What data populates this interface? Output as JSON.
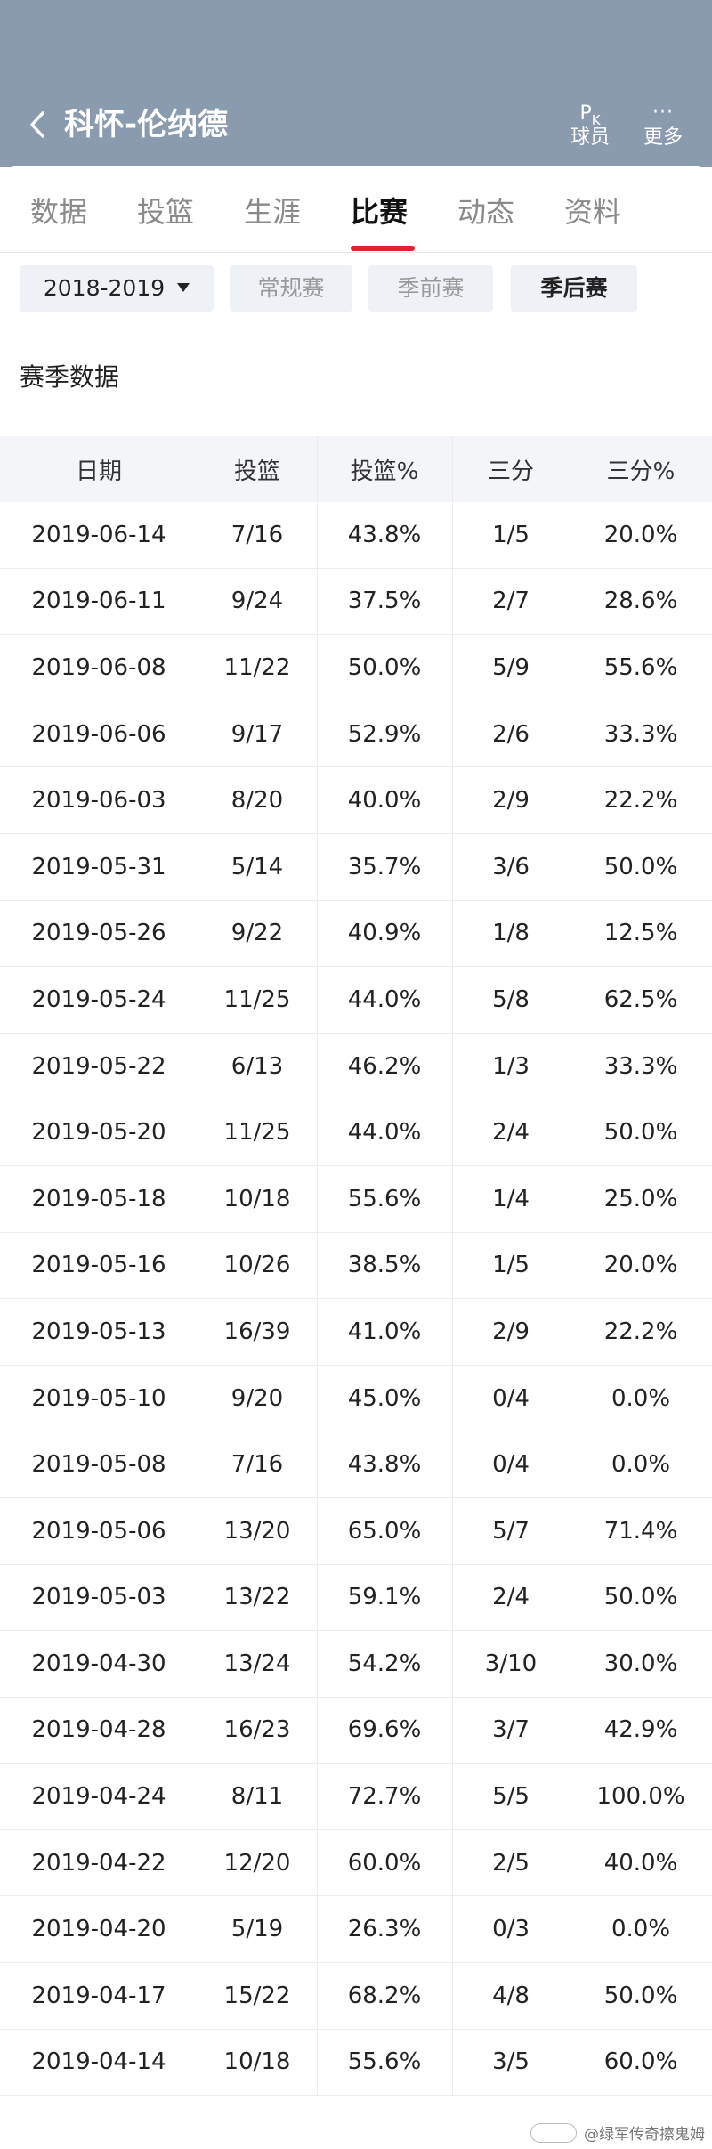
{
  "header": {
    "title": "科怀-伦纳德",
    "pk_glyph_main": "P",
    "pk_glyph_sub": "K",
    "pk_label": "球员",
    "more_glyph": "···",
    "more_label": "更多"
  },
  "tabs": [
    "数据",
    "投篮",
    "生涯",
    "比赛",
    "动态",
    "资料"
  ],
  "active_tab": "比赛",
  "filters": {
    "season": "2018-2019",
    "regular": "常规赛",
    "preseason": "季前赛",
    "playoffs": "季后赛"
  },
  "section_title": "赛季数据",
  "table": {
    "columns": [
      "日期",
      "投篮",
      "投篮%",
      "三分",
      "三分%"
    ],
    "rows": [
      [
        "2019-06-14",
        "7/16",
        "43.8%",
        "1/5",
        "20.0%"
      ],
      [
        "2019-06-11",
        "9/24",
        "37.5%",
        "2/7",
        "28.6%"
      ],
      [
        "2019-06-08",
        "11/22",
        "50.0%",
        "5/9",
        "55.6%"
      ],
      [
        "2019-06-06",
        "9/17",
        "52.9%",
        "2/6",
        "33.3%"
      ],
      [
        "2019-06-03",
        "8/20",
        "40.0%",
        "2/9",
        "22.2%"
      ],
      [
        "2019-05-31",
        "5/14",
        "35.7%",
        "3/6",
        "50.0%"
      ],
      [
        "2019-05-26",
        "9/22",
        "40.9%",
        "1/8",
        "12.5%"
      ],
      [
        "2019-05-24",
        "11/25",
        "44.0%",
        "5/8",
        "62.5%"
      ],
      [
        "2019-05-22",
        "6/13",
        "46.2%",
        "1/3",
        "33.3%"
      ],
      [
        "2019-05-20",
        "11/25",
        "44.0%",
        "2/4",
        "50.0%"
      ],
      [
        "2019-05-18",
        "10/18",
        "55.6%",
        "1/4",
        "25.0%"
      ],
      [
        "2019-05-16",
        "10/26",
        "38.5%",
        "1/5",
        "20.0%"
      ],
      [
        "2019-05-13",
        "16/39",
        "41.0%",
        "2/9",
        "22.2%"
      ],
      [
        "2019-05-10",
        "9/20",
        "45.0%",
        "0/4",
        "0.0%"
      ],
      [
        "2019-05-08",
        "7/16",
        "43.8%",
        "0/4",
        "0.0%"
      ],
      [
        "2019-05-06",
        "13/20",
        "65.0%",
        "5/7",
        "71.4%"
      ],
      [
        "2019-05-03",
        "13/22",
        "59.1%",
        "2/4",
        "50.0%"
      ],
      [
        "2019-04-30",
        "13/24",
        "54.2%",
        "3/10",
        "30.0%"
      ],
      [
        "2019-04-28",
        "16/23",
        "69.6%",
        "3/7",
        "42.9%"
      ],
      [
        "2019-04-24",
        "8/11",
        "72.7%",
        "5/5",
        "100.0%"
      ],
      [
        "2019-04-22",
        "12/20",
        "60.0%",
        "2/5",
        "40.0%"
      ],
      [
        "2019-04-20",
        "5/19",
        "26.3%",
        "0/3",
        "0.0%"
      ],
      [
        "2019-04-17",
        "15/22",
        "68.2%",
        "4/8",
        "50.0%"
      ],
      [
        "2019-04-14",
        "10/18",
        "55.6%",
        "3/5",
        "60.0%"
      ]
    ]
  },
  "watermark": "@绿军传奇擦鬼姆",
  "colors": {
    "header_bg": "#8a9bb0",
    "tab_underline": "#d9262c",
    "filter_bg": "#eef2f7",
    "table_header_bg": "#f3f5f8"
  }
}
